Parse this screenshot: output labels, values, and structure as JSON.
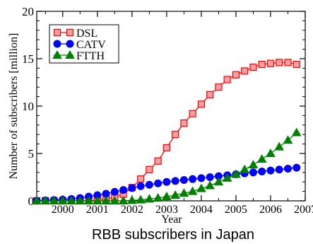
{
  "chart_data": {
    "type": "line",
    "caption": "RBB subscribers in Japan",
    "xlabel": "Year",
    "ylabel": "Number of subscribers [million]",
    "xlim": [
      1999.25,
      2007.0
    ],
    "ylim": [
      0,
      20
    ],
    "x_ticks": [
      2000,
      2001,
      2002,
      2003,
      2004,
      2005,
      2006,
      2007
    ],
    "y_ticks": [
      0,
      5,
      10,
      15,
      20
    ],
    "grid": false,
    "legend_position": "top-left",
    "series": [
      {
        "name": "DSL",
        "color": "#ff0000",
        "fill": "#f4a0a0",
        "marker": "square",
        "x": [
          1999.25,
          1999.5,
          1999.75,
          2000.0,
          2000.25,
          2000.5,
          2000.75,
          2001.0,
          2001.25,
          2001.5,
          2001.75,
          2002.0,
          2002.25,
          2002.5,
          2002.75,
          2003.0,
          2003.25,
          2003.5,
          2003.75,
          2004.0,
          2004.25,
          2004.5,
          2004.75,
          2005.0,
          2005.25,
          2005.5,
          2005.75,
          2006.0,
          2006.25,
          2006.5,
          2006.75
        ],
        "y": [
          0.0,
          0.0,
          0.0,
          0.0,
          0.0,
          0.0,
          0.0,
          0.1,
          0.2,
          0.4,
          0.7,
          1.4,
          2.3,
          3.3,
          4.2,
          5.6,
          7.0,
          8.2,
          9.2,
          10.2,
          11.2,
          12.0,
          12.8,
          13.3,
          13.7,
          14.1,
          14.4,
          14.5,
          14.6,
          14.6,
          14.4
        ]
      },
      {
        "name": "CATV",
        "color": "#0000ff",
        "fill": "#0000ff",
        "marker": "circle",
        "x": [
          1999.25,
          1999.5,
          1999.75,
          2000.0,
          2000.25,
          2000.5,
          2000.75,
          2001.0,
          2001.25,
          2001.5,
          2001.75,
          2002.0,
          2002.25,
          2002.5,
          2002.75,
          2003.0,
          2003.25,
          2003.5,
          2003.75,
          2004.0,
          2004.25,
          2004.5,
          2004.75,
          2005.0,
          2005.25,
          2005.5,
          2005.75,
          2006.0,
          2006.25,
          2006.5,
          2006.75
        ],
        "y": [
          0.02,
          0.05,
          0.08,
          0.12,
          0.2,
          0.3,
          0.45,
          0.6,
          0.75,
          0.95,
          1.15,
          1.35,
          1.55,
          1.7,
          1.85,
          2.0,
          2.1,
          2.2,
          2.3,
          2.4,
          2.5,
          2.6,
          2.7,
          2.8,
          2.9,
          3.0,
          3.1,
          3.2,
          3.3,
          3.4,
          3.5
        ]
      },
      {
        "name": "FTTH",
        "color": "#008000",
        "fill": "#008000",
        "marker": "triangle",
        "x": [
          1999.25,
          1999.5,
          1999.75,
          2000.0,
          2000.25,
          2000.5,
          2000.75,
          2001.0,
          2001.25,
          2001.5,
          2001.75,
          2002.0,
          2002.25,
          2002.5,
          2002.75,
          2003.0,
          2003.25,
          2003.5,
          2003.75,
          2004.0,
          2004.25,
          2004.5,
          2004.75,
          2005.0,
          2005.25,
          2005.5,
          2005.75,
          2006.0,
          2006.25,
          2006.5,
          2006.75
        ],
        "y": [
          0.0,
          0.0,
          0.0,
          0.0,
          0.0,
          0.0,
          0.0,
          0.0,
          0.0,
          0.0,
          0.0,
          0.05,
          0.1,
          0.2,
          0.3,
          0.45,
          0.6,
          0.8,
          1.0,
          1.3,
          1.6,
          2.0,
          2.4,
          2.8,
          3.3,
          3.8,
          4.4,
          5.0,
          5.7,
          6.4,
          7.2
        ]
      }
    ]
  }
}
